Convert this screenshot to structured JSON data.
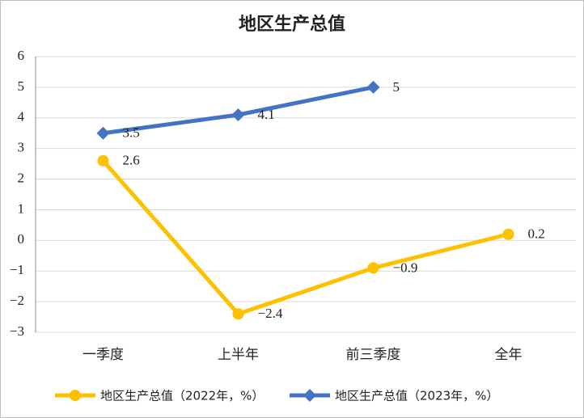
{
  "chart_data": {
    "type": "line",
    "title": "地区生产总值",
    "categories": [
      "一季度",
      "上半年",
      "前三季度",
      "全年"
    ],
    "series": [
      {
        "name": "地区生产总值（2022年，%）",
        "color": "#ffc000",
        "marker": "circle",
        "values": [
          2.6,
          -2.4,
          -0.9,
          0.2
        ],
        "value_labels": [
          "2.6",
          "−2.4",
          "−0.9",
          "0.2"
        ]
      },
      {
        "name": "地区生产总值（2023年，%）",
        "color": "#4472c4",
        "marker": "diamond",
        "values": [
          3.5,
          4.1,
          5,
          null
        ]
      }
    ],
    "ylim": [
      -3,
      6
    ],
    "yticks": [
      {
        "value": -3,
        "label": "−3"
      },
      {
        "value": -2,
        "label": "−2"
      },
      {
        "value": -1,
        "label": "−1"
      },
      0,
      1,
      2,
      3,
      4,
      5,
      6
    ],
    "grid": true,
    "legend": "bottom"
  }
}
